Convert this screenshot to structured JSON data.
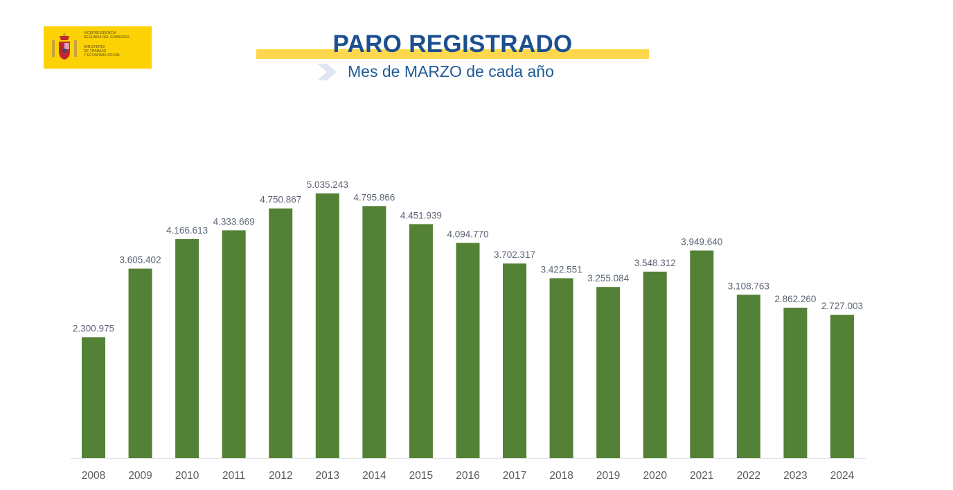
{
  "header": {
    "logo_text": [
      "VICEPRESIDENCIA",
      "SEGUNDA DEL GOBIERNO",
      "MINISTERIO",
      "DE TRABAJO",
      "Y ECONOMÍA SOCIAL"
    ],
    "title": "PARO REGISTRADO",
    "subtitle": "Mes de MARZO de cada año"
  },
  "colors": {
    "bar": "#538135",
    "title": "#1c4f8f",
    "band": "#fdd84f",
    "logo_bg": "#fcd205"
  },
  "chart_data": {
    "type": "bar",
    "title": "PARO REGISTRADO",
    "subtitle": "Mes de MARZO de cada año",
    "categories": [
      "2008",
      "2009",
      "2010",
      "2011",
      "2012",
      "2013",
      "2014",
      "2015",
      "2016",
      "2017",
      "2018",
      "2019",
      "2020",
      "2021",
      "2022",
      "2023",
      "2024"
    ],
    "values": [
      2300975,
      3605402,
      4166613,
      4333669,
      4750867,
      5035243,
      4795866,
      4451939,
      4094770,
      3702317,
      3422551,
      3255084,
      3548312,
      3949640,
      3108763,
      2862260,
      2727003
    ],
    "labels": [
      "2.300.975",
      "3.605.402",
      "4.166.613",
      "4.333.669",
      "4.750.867",
      "5.035.243",
      "4.795.866",
      "4.451.939",
      "4.094.770",
      "3.702.317",
      "3.422.551",
      "3.255.084",
      "3.548.312",
      "3.949.640",
      "3.108.763",
      "2.862.260",
      "2.727.003"
    ],
    "xlabel": "",
    "ylabel": "",
    "ylim": [
      0,
      6000000
    ],
    "grid": false,
    "legend": "none"
  }
}
